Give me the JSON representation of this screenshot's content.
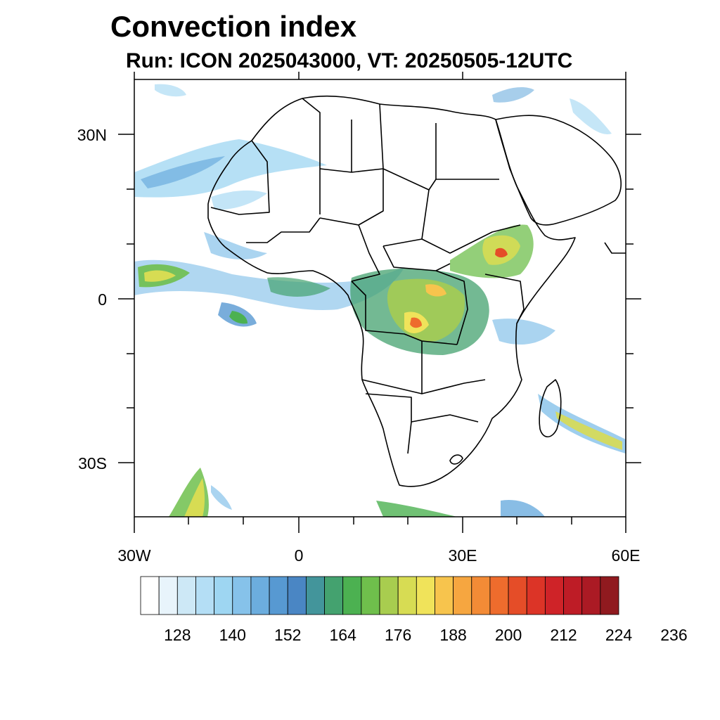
{
  "title": "Convection index",
  "subtitle": "Run: ICON 2025043000,  VT: 20250505-12UTC",
  "map": {
    "region": "Africa and adjacent Atlantic / Indian Ocean",
    "lon_range": [
      -30,
      60
    ],
    "lat_range": [
      -40,
      40
    ],
    "y_tick_labels": [
      "30N",
      "0",
      "30S"
    ],
    "x_tick_labels": [
      "30W",
      "0",
      "30E",
      "60E"
    ]
  },
  "colorbar": {
    "labels": [
      "128",
      "140",
      "152",
      "164",
      "176",
      "188",
      "200",
      "212",
      "224",
      "236"
    ],
    "colors": [
      "#ffffff",
      "#e8f4fb",
      "#cde8f6",
      "#b4def5",
      "#9ed6f2",
      "#86c2ea",
      "#6cadde",
      "#5799d2",
      "#4a86c4",
      "#43959b",
      "#44a26f",
      "#4cb151",
      "#6fbf4c",
      "#a8cd4f",
      "#d7dc53",
      "#f0e35a",
      "#f7c44d",
      "#f6a640",
      "#f38b36",
      "#ee6c2d",
      "#e54d28",
      "#dc3427",
      "#cf2328",
      "#be1c26",
      "#ab1a24",
      "#901a1f"
    ]
  }
}
